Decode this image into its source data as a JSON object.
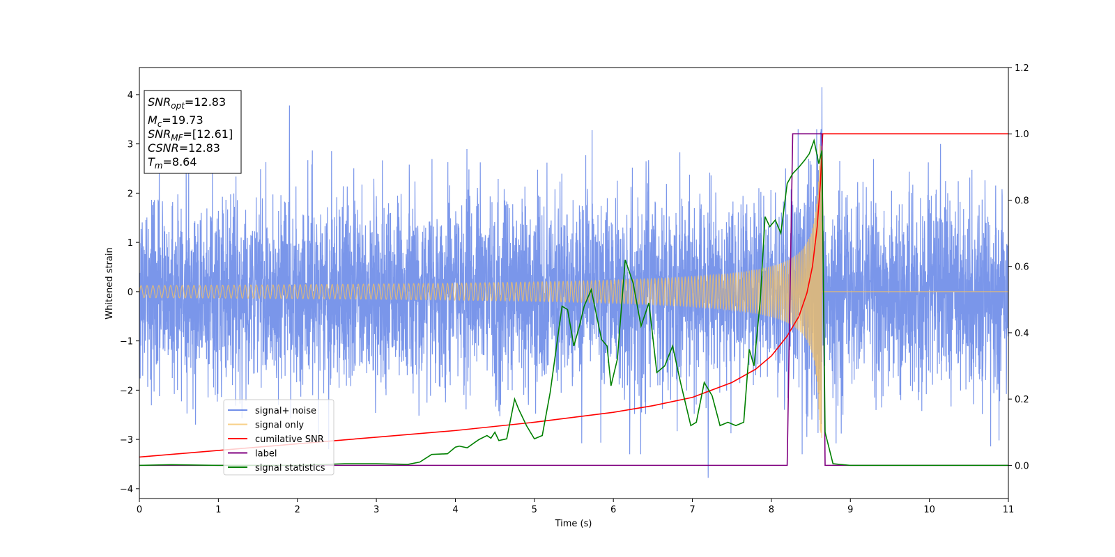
{
  "chart_data": {
    "type": "line",
    "xlabel": "Time (s)",
    "ylabel": "Whitened strain",
    "xlim": [
      0,
      11
    ],
    "ylim_left": [
      -4.2,
      4.55
    ],
    "ylim_right": [
      -0.1,
      1.2
    ],
    "xticks": [
      "0",
      "1",
      "2",
      "3",
      "4",
      "5",
      "6",
      "7",
      "8",
      "9",
      "10",
      "11"
    ],
    "yticks_left": [
      "−4",
      "−3",
      "−2",
      "−1",
      "0",
      "1",
      "2",
      "3",
      "4"
    ],
    "yticks_right": [
      "0.0",
      "0.2",
      "0.4",
      "0.6",
      "0.8",
      "1.0",
      "1.2"
    ],
    "grid": false,
    "legend_position": "lower-left",
    "annotation_box": {
      "lines": [
        {
          "sym": "SNR",
          "sub": "opt",
          "val": "=12.83"
        },
        {
          "sym": "M",
          "sub": "c",
          "val": "=19.73"
        },
        {
          "sym": "SNR",
          "sub": "MF",
          "val": "=[12.61]"
        },
        {
          "sym": "CSNR",
          "sub": "",
          "val": "=12.83"
        },
        {
          "sym": "T",
          "sub": "m",
          "val": "=8.64"
        }
      ]
    },
    "series": [
      {
        "name": "signal+ noise",
        "axis": "left",
        "color": "#4169e1",
        "noise_sigma": 0.95,
        "peak": {
          "x": 8.64,
          "y": 4.15
        },
        "outliers": [
          {
            "x": 1.9,
            "y": 3.78
          },
          {
            "x": 7.2,
            "y": -3.78
          }
        ]
      },
      {
        "name": "signal only",
        "axis": "left",
        "color": "#f5c060",
        "chirp": {
          "merger_time": 8.64,
          "amplitude_near_merger": 3.0
        }
      },
      {
        "name": "cumilative SNR",
        "axis": "right",
        "color": "#ff0000",
        "x": [
          0,
          1,
          2,
          3,
          4,
          5,
          6,
          6.5,
          7,
          7.5,
          7.8,
          8,
          8.2,
          8.35,
          8.45,
          8.52,
          8.58,
          8.62,
          8.64,
          8.65,
          11
        ],
        "y": [
          0.025,
          0.045,
          0.065,
          0.085,
          0.105,
          0.13,
          0.16,
          0.18,
          0.205,
          0.25,
          0.29,
          0.33,
          0.39,
          0.45,
          0.52,
          0.6,
          0.72,
          0.85,
          0.95,
          1.0,
          1.0
        ]
      },
      {
        "name": "label",
        "axis": "right",
        "color": "#800080",
        "x": [
          0,
          8.2,
          8.27,
          8.64,
          8.68,
          11
        ],
        "y": [
          0,
          0,
          1,
          1,
          0,
          0
        ]
      },
      {
        "name": "signal statistics",
        "axis": "right",
        "color": "#008000",
        "x": [
          0,
          0.4,
          1,
          2,
          2.6,
          3,
          3.4,
          3.55,
          3.7,
          3.9,
          4.0,
          4.05,
          4.15,
          4.25,
          4.3,
          4.4,
          4.45,
          4.5,
          4.55,
          4.65,
          4.75,
          4.8,
          4.9,
          5.0,
          5.1,
          5.2,
          5.35,
          5.42,
          5.5,
          5.57,
          5.63,
          5.72,
          5.85,
          5.92,
          5.97,
          6.05,
          6.15,
          6.25,
          6.35,
          6.45,
          6.55,
          6.65,
          6.75,
          6.85,
          6.92,
          6.98,
          7.05,
          7.15,
          7.25,
          7.35,
          7.45,
          7.55,
          7.65,
          7.72,
          7.78,
          7.86,
          7.92,
          7.98,
          8.05,
          8.12,
          8.2,
          8.27,
          8.35,
          8.42,
          8.48,
          8.54,
          8.6,
          8.64,
          8.68,
          8.78,
          9,
          10,
          11
        ],
        "y": [
          0.0,
          0.002,
          0.0,
          0.0,
          0.005,
          0.005,
          0.003,
          0.01,
          0.033,
          0.035,
          0.055,
          0.058,
          0.053,
          0.07,
          0.078,
          0.09,
          0.082,
          0.1,
          0.075,
          0.08,
          0.2,
          0.17,
          0.12,
          0.08,
          0.09,
          0.22,
          0.48,
          0.47,
          0.36,
          0.42,
          0.48,
          0.53,
          0.38,
          0.36,
          0.24,
          0.32,
          0.62,
          0.55,
          0.42,
          0.49,
          0.28,
          0.3,
          0.36,
          0.25,
          0.18,
          0.12,
          0.13,
          0.25,
          0.21,
          0.12,
          0.13,
          0.12,
          0.13,
          0.35,
          0.3,
          0.5,
          0.75,
          0.72,
          0.74,
          0.7,
          0.85,
          0.88,
          0.9,
          0.92,
          0.94,
          0.98,
          0.91,
          0.95,
          0.1,
          0.005,
          0.0,
          0.0,
          0.0
        ]
      }
    ]
  }
}
